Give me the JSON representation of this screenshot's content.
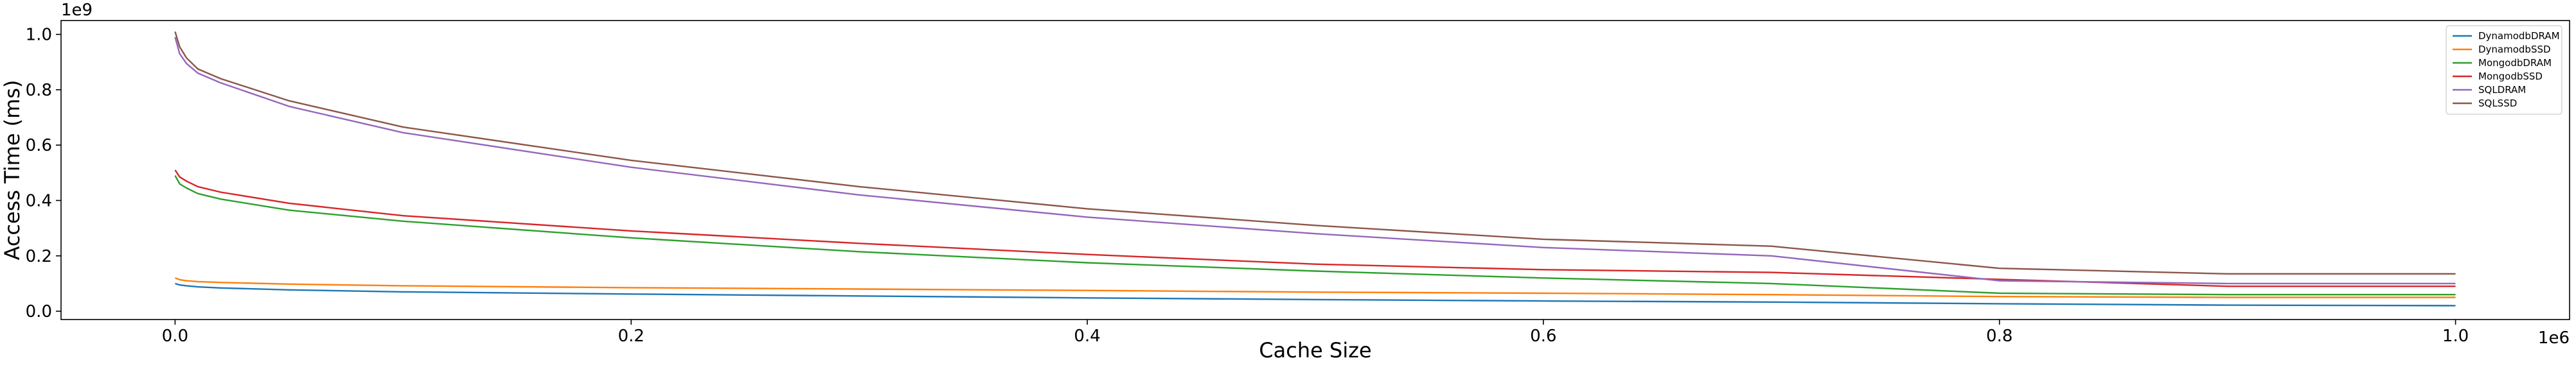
{
  "chart_data": {
    "type": "line",
    "title": "",
    "xlabel": "Cache Size",
    "ylabel": "Access Time (ms)",
    "x_offset_label": "1e6",
    "y_offset_label": "1e9",
    "xlim": [
      -0.05,
      1.05
    ],
    "ylim": [
      -0.03,
      1.05
    ],
    "x_ticks": [
      0.0,
      0.2,
      0.4,
      0.6,
      0.8,
      1.0
    ],
    "x_tick_labels": [
      "0.0",
      "0.2",
      "0.4",
      "0.6",
      "0.8",
      "1.0"
    ],
    "y_ticks": [
      0.0,
      0.2,
      0.4,
      0.6,
      0.8,
      1.0
    ],
    "y_tick_labels": [
      "0.0",
      "0.2",
      "0.4",
      "0.6",
      "0.8",
      "1.0"
    ],
    "grid": false,
    "legend_position": "top-right",
    "x": [
      0.0,
      0.002,
      0.005,
      0.01,
      0.02,
      0.05,
      0.1,
      0.2,
      0.3,
      0.4,
      0.5,
      0.6,
      0.7,
      0.8,
      0.9,
      1.0
    ],
    "series": [
      {
        "name": "DynamodbDRAM",
        "color": "#1f77b4",
        "values": [
          0.1,
          0.095,
          0.092,
          0.088,
          0.084,
          0.077,
          0.07,
          0.062,
          0.055,
          0.048,
          0.042,
          0.037,
          0.033,
          0.027,
          0.022,
          0.02
        ]
      },
      {
        "name": "DynamodbSSD",
        "color": "#ff7f0e",
        "values": [
          0.12,
          0.114,
          0.11,
          0.107,
          0.104,
          0.098,
          0.092,
          0.085,
          0.08,
          0.075,
          0.069,
          0.065,
          0.06,
          0.053,
          0.05,
          0.05
        ]
      },
      {
        "name": "MongodbDRAM",
        "color": "#2ca02c",
        "values": [
          0.49,
          0.46,
          0.445,
          0.425,
          0.405,
          0.365,
          0.325,
          0.265,
          0.215,
          0.175,
          0.145,
          0.12,
          0.1,
          0.065,
          0.06,
          0.06
        ]
      },
      {
        "name": "MongodbSSD",
        "color": "#d62728",
        "values": [
          0.51,
          0.485,
          0.47,
          0.45,
          0.43,
          0.39,
          0.345,
          0.29,
          0.245,
          0.205,
          0.17,
          0.15,
          0.14,
          0.115,
          0.09,
          0.09
        ]
      },
      {
        "name": "SQLDRAM",
        "color": "#9467bd",
        "values": [
          0.99,
          0.93,
          0.895,
          0.86,
          0.825,
          0.74,
          0.645,
          0.52,
          0.42,
          0.34,
          0.28,
          0.23,
          0.2,
          0.11,
          0.1,
          0.1
        ]
      },
      {
        "name": "SQLSSD",
        "color": "#8c564b",
        "values": [
          1.01,
          0.955,
          0.915,
          0.875,
          0.84,
          0.76,
          0.665,
          0.545,
          0.45,
          0.37,
          0.31,
          0.26,
          0.235,
          0.155,
          0.135,
          0.135
        ]
      }
    ]
  }
}
